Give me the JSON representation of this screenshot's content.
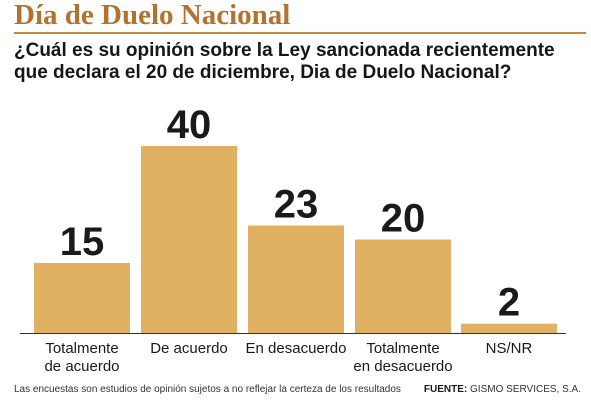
{
  "header": {
    "title": "Día de Duelo Nacional",
    "question": "¿Cuál es su opinión sobre la Ley sancionada recientemente que declara el 20 de diciembre, Dia de Duelo Nacional?"
  },
  "colors": {
    "title": "#b5722e",
    "rule": "#c7883f",
    "bar": "#e0b163",
    "axis": "#333333"
  },
  "chart_data": {
    "type": "bar",
    "title": "",
    "xlabel": "",
    "ylabel": "",
    "categories": [
      [
        "Totalmente",
        "de acuerdo"
      ],
      [
        "De acuerdo"
      ],
      [
        "En desacuerdo"
      ],
      [
        "Totalmente",
        "en desacuerdo"
      ],
      [
        "NS/NR"
      ]
    ],
    "values": [
      15,
      40,
      23,
      20,
      2
    ],
    "ylim": [
      0,
      40
    ],
    "grid": false,
    "legend": "none",
    "data_labels": true
  },
  "footer": {
    "note": "Las encuestas son estudios de opinión sujetos a no reflejar la certeza de los resultados",
    "source_label": "FUENTE:",
    "source_value": "GISMO SERVICES, S.A."
  }
}
